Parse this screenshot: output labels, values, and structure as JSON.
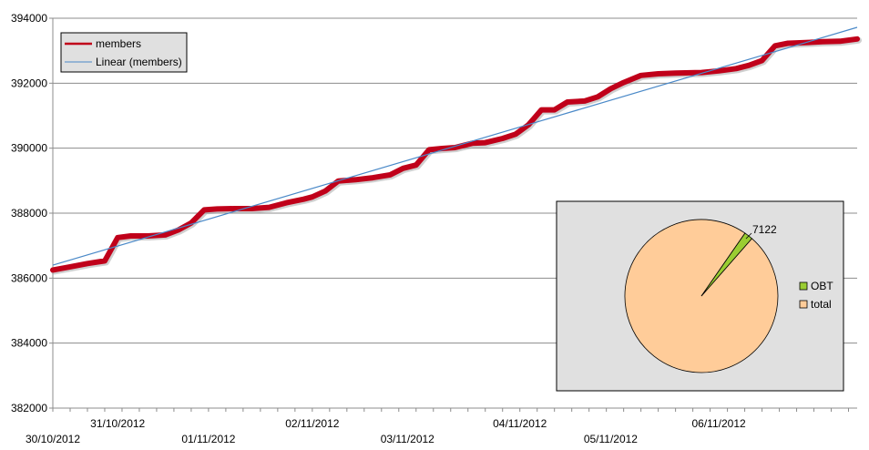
{
  "chart_data": [
    {
      "type": "line",
      "title": "",
      "xlabel": "",
      "ylabel": "",
      "ylim": [
        382000,
        394000
      ],
      "yticks": [
        382000,
        384000,
        386000,
        388000,
        390000,
        392000,
        394000
      ],
      "grid": "horizontal",
      "legend_position": "top-left",
      "x_ticks": [
        {
          "label": "30/10/2012",
          "x": 0.0
        },
        {
          "label": "31/10/2012",
          "x": 0.75
        },
        {
          "label": "01/11/2012",
          "x": 1.8
        },
        {
          "label": "02/11/2012",
          "x": 3.0
        },
        {
          "label": "03/11/2012",
          "x": 4.1
        },
        {
          "label": "04/11/2012",
          "x": 5.4
        },
        {
          "label": "05/11/2012",
          "x": 6.45
        },
        {
          "label": "06/11/2012",
          "x": 7.7
        }
      ],
      "series": [
        {
          "name": "members",
          "color": "#c0001a",
          "points": [
            [
              0.0,
              386250
            ],
            [
              0.2,
              386350
            ],
            [
              0.4,
              386450
            ],
            [
              0.6,
              386530
            ],
            [
              0.75,
              387250
            ],
            [
              0.9,
              387300
            ],
            [
              1.1,
              387300
            ],
            [
              1.3,
              387330
            ],
            [
              1.45,
              387480
            ],
            [
              1.6,
              387700
            ],
            [
              1.75,
              388100
            ],
            [
              1.9,
              388130
            ],
            [
              2.1,
              388140
            ],
            [
              2.3,
              388140
            ],
            [
              2.5,
              388180
            ],
            [
              2.7,
              388320
            ],
            [
              2.9,
              388430
            ],
            [
              3.0,
              388500
            ],
            [
              3.15,
              388680
            ],
            [
              3.3,
              388990
            ],
            [
              3.5,
              389030
            ],
            [
              3.7,
              389090
            ],
            [
              3.9,
              389180
            ],
            [
              4.05,
              389380
            ],
            [
              4.2,
              389480
            ],
            [
              4.35,
              389950
            ],
            [
              4.5,
              389990
            ],
            [
              4.65,
              390020
            ],
            [
              4.85,
              390150
            ],
            [
              5.0,
              390170
            ],
            [
              5.2,
              390300
            ],
            [
              5.35,
              390430
            ],
            [
              5.5,
              390720
            ],
            [
              5.65,
              391180
            ],
            [
              5.8,
              391180
            ],
            [
              5.95,
              391420
            ],
            [
              6.15,
              391450
            ],
            [
              6.3,
              391580
            ],
            [
              6.45,
              391830
            ],
            [
              6.6,
              392020
            ],
            [
              6.8,
              392240
            ],
            [
              7.0,
              392290
            ],
            [
              7.2,
              392310
            ],
            [
              7.5,
              392330
            ],
            [
              7.7,
              392380
            ],
            [
              7.9,
              392450
            ],
            [
              8.05,
              392550
            ],
            [
              8.2,
              392700
            ],
            [
              8.35,
              393150
            ],
            [
              8.5,
              393230
            ],
            [
              8.7,
              393250
            ],
            [
              8.9,
              393280
            ],
            [
              9.1,
              393290
            ],
            [
              9.3,
              393360
            ]
          ]
        },
        {
          "name": "Linear (members)",
          "color": "#4a89c8",
          "points": [
            [
              0.0,
              386400
            ],
            [
              9.3,
              393720
            ]
          ]
        }
      ]
    },
    {
      "type": "pie",
      "legend_position": "right",
      "slices": [
        {
          "name": "OBT",
          "value": 7122,
          "color": "#9acd32",
          "data_label": "7122"
        },
        {
          "name": "total",
          "value": 386300,
          "color": "#ffcc99"
        }
      ]
    }
  ]
}
